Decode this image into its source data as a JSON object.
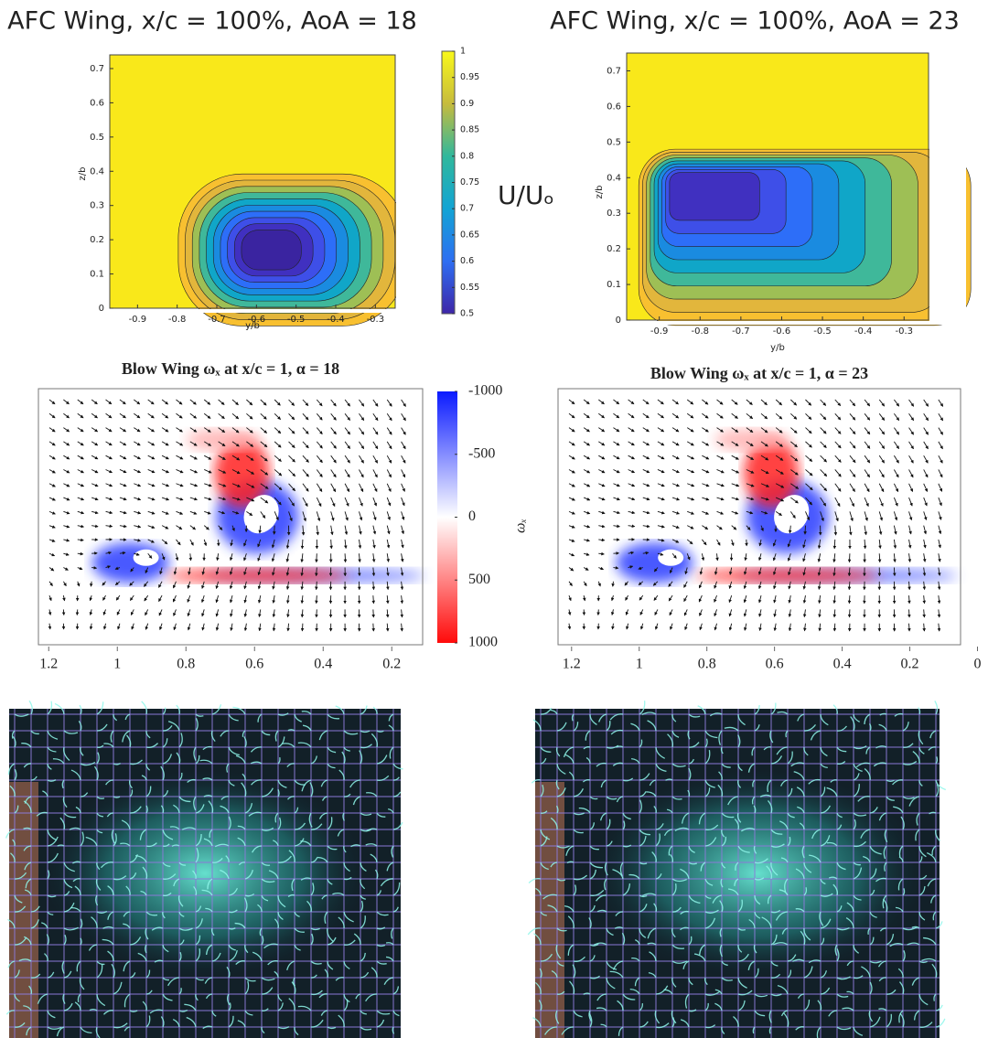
{
  "chart_data": [
    {
      "type": "contour",
      "title": "AFC Wing, x/c = 100%, AoA = 18",
      "xlabel": "y/b",
      "ylabel": "z/b",
      "xlim": [
        -0.97,
        -0.25
      ],
      "ylim": [
        0,
        0.74
      ],
      "xticks": [
        -0.9,
        -0.8,
        -0.7,
        -0.6,
        -0.5,
        -0.4,
        -0.3
      ],
      "yticks": [
        0,
        0.1,
        0.2,
        0.3,
        0.4,
        0.5,
        0.6,
        0.7
      ],
      "colorbar": {
        "label": "U/Uₒ",
        "lim": [
          0.5,
          1
        ],
        "ticks": [
          0.5,
          0.55,
          0.6,
          0.65,
          0.7,
          0.75,
          0.8,
          0.85,
          0.9,
          0.95,
          1
        ]
      }
    },
    {
      "type": "contour",
      "title": "AFC Wing, x/c = 100%, AoA = 23",
      "xlabel": "y/b",
      "ylabel": "z/b",
      "xlim": [
        -0.98,
        -0.24
      ],
      "ylim": [
        0,
        0.75
      ],
      "xticks": [
        -0.9,
        -0.8,
        -0.7,
        -0.6,
        -0.5,
        -0.4,
        -0.3
      ],
      "yticks": [
        0,
        0.1,
        0.2,
        0.3,
        0.4,
        0.5,
        0.6,
        0.7
      ]
    },
    {
      "type": "quiver",
      "title": "Blow Wing ωₓ at x/c = 1, α = 18",
      "xlim": [
        1.23,
        0.11
      ],
      "xticks": [
        1.2,
        1,
        0.8,
        0.6,
        0.4,
        0.2
      ],
      "colorbar": {
        "label": "ωₓ",
        "lim": [
          1000,
          -1000
        ],
        "ticks": [
          -1000,
          -500,
          0,
          500,
          1000
        ]
      }
    },
    {
      "type": "quiver",
      "title": "Blow Wing ωₓ at x/c = 1, α = 23",
      "xlim": [
        1.24,
        0.05
      ],
      "xticks": [
        1.2,
        1,
        0.8,
        0.6,
        0.4,
        0.2,
        0
      ]
    }
  ]
}
